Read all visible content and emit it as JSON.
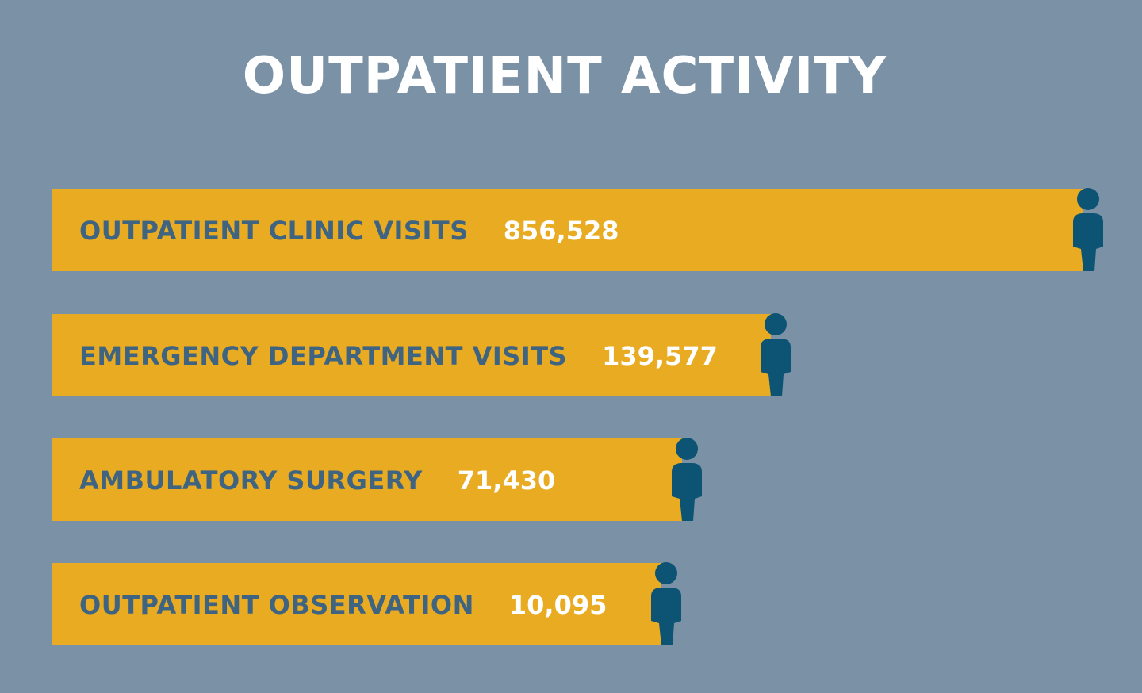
{
  "chart_data": {
    "type": "bar",
    "orientation": "horizontal",
    "title": "OUTPATIENT ACTIVITY",
    "categories": [
      "OUTPATIENT CLINIC VISITS",
      "EMERGENCY DEPARTMENT VISITS",
      "AMBULATORY SURGERY",
      "OUTPATIENT OBSERVATION"
    ],
    "values": [
      856528,
      139577,
      71430,
      10095
    ],
    "value_labels": [
      "856,528",
      "139,577",
      "71,430",
      "10,095"
    ],
    "axes_shown": false,
    "grid": false,
    "legend": "none",
    "bar_end_marker": "person-icon"
  },
  "colors": {
    "background": "#7b91a5",
    "bar": "#e8ab21",
    "label_text": "#3f6482",
    "value_text": "#ffffff",
    "icon": "#0d5474",
    "title_text": "#ffffff"
  }
}
